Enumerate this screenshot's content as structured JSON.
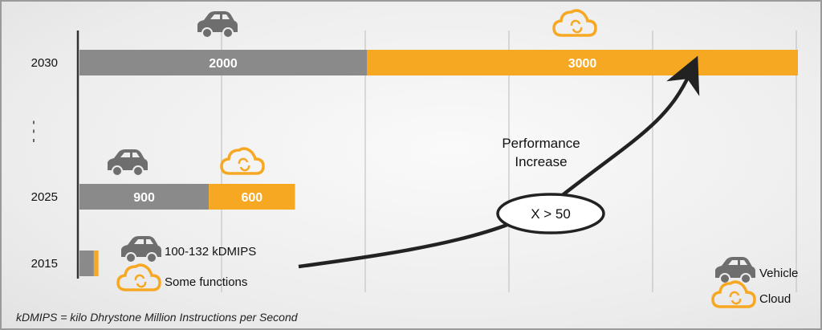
{
  "chart_data": {
    "type": "bar",
    "orientation": "horizontal",
    "stacked": true,
    "categories": [
      "2030",
      "2025",
      "2015"
    ],
    "series": [
      {
        "name": "Vehicle",
        "values": [
          2000,
          900,
          100
        ],
        "color": "#8a8a8a",
        "labels": [
          "2000",
          "900",
          ""
        ]
      },
      {
        "name": "Cloud",
        "values": [
          3000,
          600,
          32
        ],
        "color": "#f7a823",
        "labels": [
          "3000",
          "600",
          ""
        ]
      }
    ],
    "xlim": [
      0,
      5000
    ],
    "grid": true,
    "legend_placement": "bottom-right",
    "annotations": {
      "vehicle_2015": "100-132 kDMIPS",
      "cloud_2015": "Some functions",
      "arrow_label": "Performance Increase",
      "arrow_label_line1": "Performance",
      "arrow_label_line2": "Increase",
      "factor": "X > 50",
      "footnote": "kDMIPS = kilo Dhrystone Million Instructions per Second",
      "ellipsis": "⋮"
    },
    "icons": {
      "vehicle": "car-icon",
      "cloud": "cloud-sync-icon"
    }
  }
}
